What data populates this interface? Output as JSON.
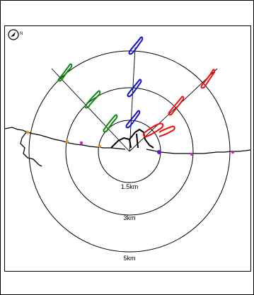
{
  "compass": {
    "icon": "compass-north-icon",
    "label": "N"
  },
  "rings": [
    {
      "label": "1.5km"
    },
    {
      "label": "3km"
    },
    {
      "label": "5km"
    }
  ],
  "colors": {
    "outline": "#000000",
    "green": "#118811",
    "blue": "#1111cc",
    "red": "#ee1111",
    "orange": "#f08a1c",
    "magenta": "#cc22cc",
    "purple": "#6611cc"
  },
  "icons": {
    "ray": "direction-line",
    "squiggle": "flight-track-glyph",
    "coast": "coastline"
  }
}
